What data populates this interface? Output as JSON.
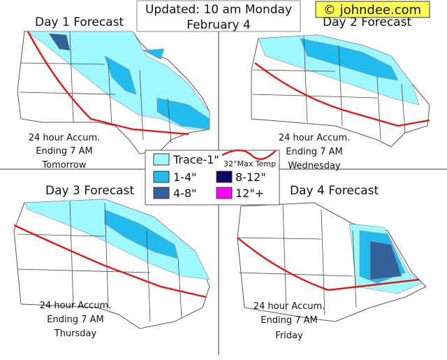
{
  "header": {
    "updated": "Updated: 10 am Monday",
    "date": "February 4",
    "credit": "© johndee.com"
  },
  "panels": [
    {
      "title": "Day 1 Forecast",
      "accum": "24 hour Accum.",
      "ending": "Ending 7 AM",
      "day": "Tomorrow"
    },
    {
      "title": "Day 2 Forecast",
      "accum": "24 hour Accum.",
      "ending": "Ending 7 AM",
      "day": "Wednesday"
    },
    {
      "title": "Day 3 Forecast",
      "accum": "24 hour Accum.",
      "ending": "Ending 7 AM",
      "day": "Thursday"
    },
    {
      "title": "Day 4 Forecast",
      "accum": "24 hour Accum.",
      "ending": "Ending 7 AM",
      "day": "Friday"
    }
  ],
  "legend": {
    "items": [
      {
        "label": "Trace-1\"",
        "color": "#a0f8ff"
      },
      {
        "label": "1-4\"",
        "color": "#22bbee"
      },
      {
        "label": "4-8\"",
        "color": "#33619a"
      },
      {
        "label": "8-12\"",
        "color": "#0a0a60"
      },
      {
        "label": "12\"+",
        "color": "#ff00ff"
      }
    ],
    "line_label": "32°Max Temp"
  }
}
